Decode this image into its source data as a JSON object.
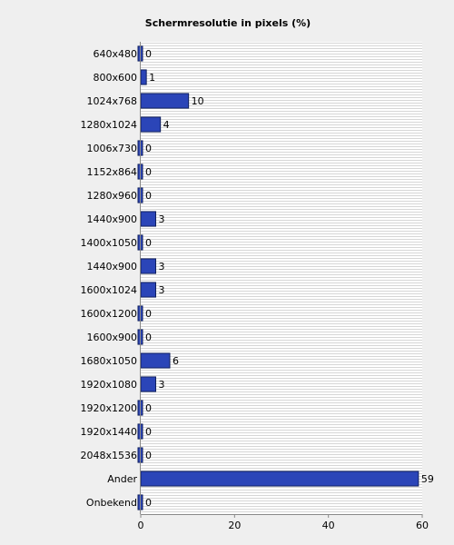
{
  "chart_data": {
    "type": "bar",
    "orientation": "horizontal",
    "title": "Schermresolutie in pixels (%)",
    "xlabel": "",
    "ylabel": "",
    "categories": [
      "640x480",
      "800x600",
      "1024x768",
      "1280x1024",
      "1006x730",
      "1152x864",
      "1280x960",
      "1440x900",
      "1400x1050",
      "1440x900",
      "1600x1024",
      "1600x1200",
      "1600x900",
      "1680x1050",
      "1920x1080",
      "1920x1200",
      "1920x1440",
      "2048x1536",
      "Ander",
      "Onbekend"
    ],
    "values": [
      0,
      1,
      10,
      4,
      0,
      0,
      0,
      3,
      0,
      3,
      3,
      0,
      0,
      6,
      3,
      0,
      0,
      0,
      59,
      0
    ],
    "value_labels": [
      "0",
      "1",
      "10",
      "4",
      "0",
      "0",
      "0",
      "3",
      "0",
      "3",
      "3",
      "0",
      "0",
      "6",
      "3",
      "0",
      "0",
      "0",
      "59",
      "0"
    ],
    "xlim": [
      0,
      60
    ],
    "x_ticks": [
      "0",
      "20",
      "40",
      "60"
    ],
    "grid": true,
    "legend": "none",
    "colors": {
      "bar": "#2b45b8",
      "bar_edge": "#10205e",
      "plot_background": "#ffffff",
      "grid_line": "#d6d6d6",
      "page_background": "#efefef"
    }
  }
}
